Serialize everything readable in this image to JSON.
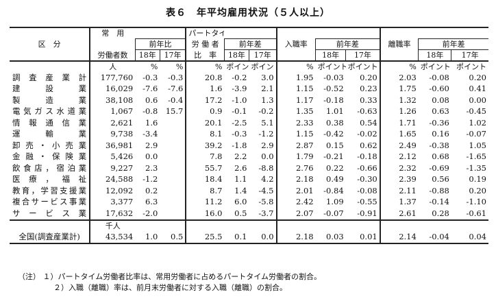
{
  "title": "表６　年平均雇用状況（５人以上）",
  "header": {
    "col_industry": "区　分",
    "col_regular": "常　用",
    "col_regular_sub": "労働者数",
    "col_yoy_ratio": "前年比",
    "col_parttime_top": "パートタイム",
    "col_parttime_mid": "労 働 者",
    "col_parttime_bottom": "比　率",
    "col_yoy_diff": "前年差",
    "col_hire": "入職率",
    "col_sep": "離職率",
    "y18": "18年",
    "y17": "17年"
  },
  "units": {
    "people": "人",
    "pct": "%",
    "point": "ポイント"
  },
  "rows": [
    {
      "name": "調査産業計",
      "workers": "177,760",
      "r18": "-0.3",
      "r17": "-0.3",
      "pt": "20.8",
      "pt18": "-0.2",
      "pt17": "3.0",
      "hr": "1.95",
      "hr18": "-0.03",
      "hr17": "0.20",
      "sr": "2.03",
      "sr18": "-0.08",
      "sr17": "0.20"
    },
    {
      "name": "建設業",
      "workers": "16,029",
      "r18": "-7.6",
      "r17": "-7.6",
      "pt": "1.6",
      "pt18": "-3.9",
      "pt17": "2.1",
      "hr": "1.15",
      "hr18": "-0.52",
      "hr17": "0.23",
      "sr": "1.75",
      "sr18": "-0.60",
      "sr17": "0.41"
    },
    {
      "name": "製造業",
      "workers": "38,108",
      "r18": "0.6",
      "r17": "-0.4",
      "pt": "17.2",
      "pt18": "-1.0",
      "pt17": "1.3",
      "hr": "1.17",
      "hr18": "-0.18",
      "hr17": "0.33",
      "sr": "1.32",
      "sr18": "0.08",
      "sr17": "0.00"
    },
    {
      "name": "電気ガス水道業",
      "workers": "1,067",
      "r18": "-0.8",
      "r17": "15.7",
      "pt": "0.9",
      "pt18": "-0.1",
      "pt17": "-0.2",
      "hr": "1.35",
      "hr18": "1.01",
      "hr17": "-0.63",
      "sr": "1.26",
      "sr18": "0.63",
      "sr17": "-0.45"
    },
    {
      "name": "情報通信業",
      "workers": "2,621",
      "r18": "1.6",
      "r17": "",
      "pt": "20.1",
      "pt18": "-2.5",
      "pt17": "5.1",
      "hr": "2.33",
      "hr18": "0.38",
      "hr17": "0.54",
      "sr": "1.71",
      "sr18": "-0.36",
      "sr17": "1.02"
    },
    {
      "name": "運輸業",
      "workers": "9,738",
      "r18": "-3.4",
      "r17": "",
      "pt": "8.1",
      "pt18": "-0.3",
      "pt17": "-1.2",
      "hr": "1.15",
      "hr18": "-0.42",
      "hr17": "-0.02",
      "sr": "1.65",
      "sr18": "0.16",
      "sr17": "-0.07"
    },
    {
      "name": "卸売・小売業",
      "workers": "36,981",
      "r18": "2.9",
      "r17": "",
      "pt": "39.2",
      "pt18": "-1.8",
      "pt17": "2.9",
      "hr": "2.87",
      "hr18": "0.15",
      "hr17": "0.62",
      "sr": "2.49",
      "sr18": "-0.38",
      "sr17": "1.05"
    },
    {
      "name": "金融・保険業",
      "workers": "5,426",
      "r18": "0.0",
      "r17": "",
      "pt": "7.8",
      "pt18": "2.2",
      "pt17": "0.0",
      "hr": "1.79",
      "hr18": "-0.21",
      "hr17": "-0.18",
      "sr": "2.12",
      "sr18": "0.68",
      "sr17": "-1.65"
    },
    {
      "name": "飲食店，宿泊業",
      "workers": "9,227",
      "r18": "2.3",
      "r17": "",
      "pt": "55.7",
      "pt18": "2.6",
      "pt17": "-8.8",
      "hr": "2.76",
      "hr18": "0.22",
      "hr17": "-0.66",
      "sr": "2.32",
      "sr18": "-0.69",
      "sr17": "-1.35"
    },
    {
      "name": "医療，福祉",
      "workers": "24,588",
      "r18": "-1.2",
      "r17": "",
      "pt": "18.4",
      "pt18": "1.1",
      "pt17": "4.2",
      "hr": "2.18",
      "hr18": "0.49",
      "hr17": "-0.30",
      "sr": "2.39",
      "sr18": "0.56",
      "sr17": "0.19"
    },
    {
      "name": "教育，学習支援業",
      "workers": "12,092",
      "r18": "0.2",
      "r17": "",
      "pt": "8.7",
      "pt18": "1.4",
      "pt17": "-4.5",
      "hr": "2.01",
      "hr18": "-0.84",
      "hr17": "-0.08",
      "sr": "2.11",
      "sr18": "-0.88",
      "sr17": "0.20"
    },
    {
      "name": "複合サービス事業",
      "workers": "3,377",
      "r18": "6.3",
      "r17": "",
      "pt": "11.2",
      "pt18": "6.0",
      "pt17": "-5.8",
      "hr": "2.42",
      "hr18": "1.09",
      "hr17": "-0.55",
      "sr": "1.37",
      "sr18": "-0.14",
      "sr17": "-1.10"
    },
    {
      "name": "サービス業",
      "workers": "17,632",
      "r18": "-2.0",
      "r17": "",
      "pt": "16.0",
      "pt18": "0.5",
      "pt17": "-3.7",
      "hr": "2.07",
      "hr18": "-0.07",
      "hr17": "-0.91",
      "sr": "2.61",
      "sr18": "0.28",
      "sr17": "-0.61"
    }
  ],
  "national": {
    "name": "全国(調査産業計)",
    "unit": "千人",
    "workers": "43,534",
    "r18": "1.0",
    "r17": "0.5",
    "pt": "25.5",
    "pt18": "0.1",
    "pt17": "0.0",
    "hr": "2.18",
    "hr18": "0.03",
    "hr17": "0.01",
    "sr": "2.14",
    "sr18": "-0.04",
    "sr17": "0.04"
  },
  "notes": {
    "label": "（注）",
    "n1": "１）パートタイム労働者比率は、常用労働者に占めるパートタイム労働者の割合。",
    "n2": "２）入職（離職）率は、前月末労働者に対する入職（離職）の割合。"
  }
}
